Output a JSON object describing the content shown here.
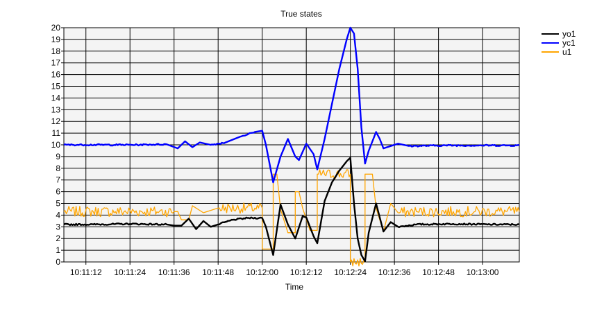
{
  "chart_data": {
    "type": "line",
    "title": "True states",
    "xlabel": "Time",
    "ylabel": "",
    "ylim": [
      0,
      20
    ],
    "xlim": [
      "10:11:06",
      "10:13:10"
    ],
    "x_ticks": [
      "10:11:12",
      "10:11:24",
      "10:11:36",
      "10:11:48",
      "10:12:00",
      "10:12:12",
      "10:12:24",
      "10:12:36",
      "10:12:48",
      "10:13:00"
    ],
    "y_ticks": [
      0,
      1,
      2,
      3,
      4,
      5,
      6,
      7,
      8,
      9,
      10,
      11,
      12,
      13,
      14,
      15,
      16,
      17,
      18,
      19,
      20
    ],
    "grid": true,
    "legend_position": "top-right",
    "series": [
      {
        "name": "yo1",
        "color": "#000000",
        "points": [
          [
            "10:11:06",
            3.2
          ],
          [
            "10:11:14",
            3.2
          ],
          [
            "10:11:24",
            3.25
          ],
          [
            "10:11:34",
            3.2
          ],
          [
            "10:11:36",
            3.1
          ],
          [
            "10:11:38",
            3.1
          ],
          [
            "10:11:40",
            3.7
          ],
          [
            "10:11:42",
            2.8
          ],
          [
            "10:11:44",
            3.5
          ],
          [
            "10:11:46",
            3.0
          ],
          [
            "10:11:48",
            3.2
          ],
          [
            "10:11:52",
            3.6
          ],
          [
            "10:11:56",
            3.75
          ],
          [
            "10:12:00",
            3.75
          ],
          [
            "10:12:01",
            3.0
          ],
          [
            "10:12:03",
            0.6
          ],
          [
            "10:12:05",
            4.9
          ],
          [
            "10:12:07",
            3.2
          ],
          [
            "10:12:09",
            2.0
          ],
          [
            "10:12:11",
            3.9
          ],
          [
            "10:12:12",
            3.8
          ],
          [
            "10:12:14",
            2.2
          ],
          [
            "10:12:15",
            1.6
          ],
          [
            "10:12:17",
            5.2
          ],
          [
            "10:12:19",
            6.8
          ],
          [
            "10:12:21",
            7.8
          ],
          [
            "10:12:23",
            8.6
          ],
          [
            "10:12:24",
            8.9
          ],
          [
            "10:12:25",
            5.0
          ],
          [
            "10:12:26",
            2.0
          ],
          [
            "10:12:27",
            0.6
          ],
          [
            "10:12:28",
            0.05
          ],
          [
            "10:12:29",
            2.5
          ],
          [
            "10:12:31",
            5.0
          ],
          [
            "10:12:33",
            2.6
          ],
          [
            "10:12:35",
            3.4
          ],
          [
            "10:12:37",
            3.0
          ],
          [
            "10:12:42",
            3.2
          ],
          [
            "10:12:52",
            3.25
          ],
          [
            "10:13:02",
            3.2
          ],
          [
            "10:13:10",
            3.2
          ]
        ]
      },
      {
        "name": "yc1",
        "color": "#0000ff",
        "points": [
          [
            "10:11:06",
            10.0
          ],
          [
            "10:11:16",
            10.0
          ],
          [
            "10:11:26",
            10.0
          ],
          [
            "10:11:34",
            10.05
          ],
          [
            "10:11:37",
            9.7
          ],
          [
            "10:11:39",
            10.3
          ],
          [
            "10:11:41",
            9.8
          ],
          [
            "10:11:43",
            10.2
          ],
          [
            "10:11:46",
            10.0
          ],
          [
            "10:11:50",
            10.2
          ],
          [
            "10:11:54",
            10.7
          ],
          [
            "10:11:58",
            11.1
          ],
          [
            "10:12:00",
            11.2
          ],
          [
            "10:12:01",
            10.0
          ],
          [
            "10:12:03",
            6.8
          ],
          [
            "10:12:05",
            9.0
          ],
          [
            "10:12:07",
            10.5
          ],
          [
            "10:12:09",
            9.0
          ],
          [
            "10:12:10",
            8.7
          ],
          [
            "10:12:12",
            10.1
          ],
          [
            "10:12:14",
            9.2
          ],
          [
            "10:12:15",
            7.9
          ],
          [
            "10:12:17",
            10.5
          ],
          [
            "10:12:19",
            13.5
          ],
          [
            "10:12:21",
            16.5
          ],
          [
            "10:12:23",
            19.0
          ],
          [
            "10:12:24",
            20.0
          ],
          [
            "10:12:25",
            19.5
          ],
          [
            "10:12:26",
            16.5
          ],
          [
            "10:12:27",
            11.5
          ],
          [
            "10:12:28",
            8.4
          ],
          [
            "10:12:29",
            9.5
          ],
          [
            "10:12:31",
            11.1
          ],
          [
            "10:12:32",
            10.5
          ],
          [
            "10:12:33",
            9.7
          ],
          [
            "10:12:35",
            9.9
          ],
          [
            "10:12:37",
            10.1
          ],
          [
            "10:12:40",
            9.9
          ],
          [
            "10:12:50",
            9.95
          ],
          [
            "10:13:00",
            9.95
          ],
          [
            "10:13:10",
            9.95
          ]
        ]
      },
      {
        "name": "u1",
        "color": "#ffa500",
        "points": [
          [
            "10:11:06",
            4.3
          ],
          [
            "10:11:20",
            4.3
          ],
          [
            "10:11:32",
            4.3
          ],
          [
            "10:11:36",
            4.3
          ],
          [
            "10:11:37",
            4.3
          ],
          [
            "10:11:38",
            3.6
          ],
          [
            "10:11:40",
            3.6
          ],
          [
            "10:11:41",
            4.8
          ],
          [
            "10:11:44",
            4.2
          ],
          [
            "10:11:47",
            4.5
          ],
          [
            "10:11:48",
            4.6
          ],
          [
            "10:12:00",
            4.6
          ],
          [
            "10:12:00",
            1.1
          ],
          [
            "10:12:03",
            1.1
          ],
          [
            "10:12:03",
            7.5
          ],
          [
            "10:12:04",
            7.5
          ],
          [
            "10:12:05",
            4.5
          ],
          [
            "10:12:07",
            2.5
          ],
          [
            "10:12:09",
            2.5
          ],
          [
            "10:12:09",
            6.0
          ],
          [
            "10:12:10",
            6.0
          ],
          [
            "10:12:11",
            4.6
          ],
          [
            "10:12:13",
            2.7
          ],
          [
            "10:12:15",
            2.7
          ],
          [
            "10:12:15",
            7.5
          ],
          [
            "10:12:24",
            7.5
          ],
          [
            "10:12:24",
            0.0
          ],
          [
            "10:12:28",
            0.0
          ],
          [
            "10:12:28",
            7.5
          ],
          [
            "10:12:30",
            7.5
          ],
          [
            "10:12:31",
            4.6
          ],
          [
            "10:12:33",
            2.6
          ],
          [
            "10:12:35",
            5.0
          ],
          [
            "10:12:37",
            4.2
          ],
          [
            "10:12:42",
            4.3
          ],
          [
            "10:12:52",
            4.3
          ],
          [
            "10:13:10",
            4.3
          ]
        ]
      }
    ],
    "noise": {
      "u1": 0.45,
      "yo1": 0.06,
      "yc1": 0.06
    }
  }
}
